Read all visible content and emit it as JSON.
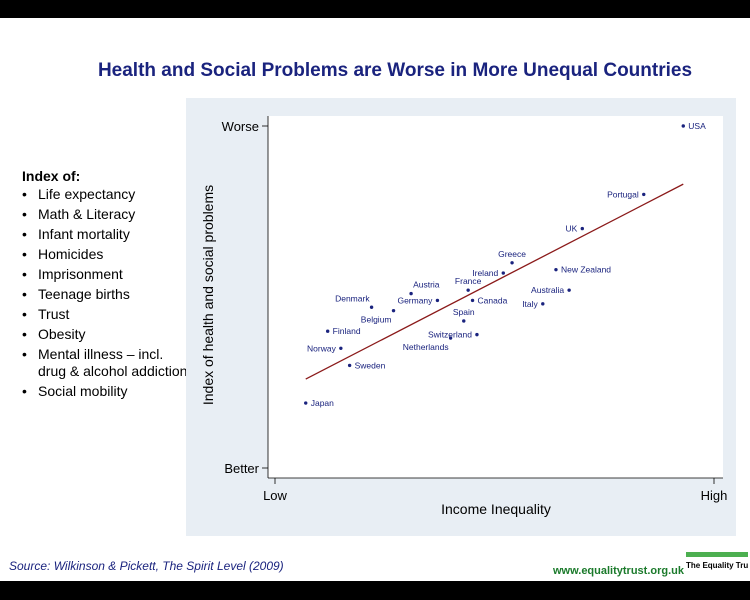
{
  "title": "Health and Social Problems are Worse in More Unequal Countries",
  "index": {
    "heading": "Index of:",
    "items": [
      "Life expectancy",
      "Math & Literacy",
      "Infant mortality",
      "Homicides",
      "Imprisonment",
      "Teenage births",
      "Trust",
      "Obesity",
      "Mental illness – incl. drug & alcohol addiction",
      "Social mobility"
    ]
  },
  "source": "Source: Wilkinson & Pickett, The Spirit Level (2009)",
  "website": "www.equalitytrust.org.uk",
  "logo_text": "The Equality Trust",
  "colors": {
    "title": "#1a237e",
    "fit_line": "#8b1a1a",
    "points": "#1a237e",
    "panel": "#e8eef4",
    "website": "#1b7a2b",
    "logo_bar": "#4caf50"
  },
  "chart_data": {
    "type": "scatter",
    "xlabel": "Income Inequality",
    "ylabel": "Index of health and social problems",
    "x_ticks": [
      {
        "value": 0,
        "label": "Low"
      },
      {
        "value": 1,
        "label": "High"
      }
    ],
    "y_ticks": [
      {
        "value": 0,
        "label": "Better"
      },
      {
        "value": 1,
        "label": "Worse"
      }
    ],
    "xlim": [
      0,
      1
    ],
    "ylim": [
      0,
      1
    ],
    "grid": false,
    "points": [
      {
        "label": "USA",
        "x": 0.93,
        "y": 1.0,
        "label_pos": "right"
      },
      {
        "label": "Portugal",
        "x": 0.84,
        "y": 0.8,
        "label_pos": "left"
      },
      {
        "label": "UK",
        "x": 0.7,
        "y": 0.7,
        "label_pos": "left"
      },
      {
        "label": "Greece",
        "x": 0.54,
        "y": 0.6,
        "label_pos": "above"
      },
      {
        "label": "New Zealand",
        "x": 0.64,
        "y": 0.58,
        "label_pos": "right"
      },
      {
        "label": "Ireland",
        "x": 0.52,
        "y": 0.57,
        "label_pos": "left"
      },
      {
        "label": "Australia",
        "x": 0.67,
        "y": 0.52,
        "label_pos": "left"
      },
      {
        "label": "France",
        "x": 0.44,
        "y": 0.52,
        "label_pos": "above"
      },
      {
        "label": "Italy",
        "x": 0.61,
        "y": 0.48,
        "label_pos": "left"
      },
      {
        "label": "Canada",
        "x": 0.45,
        "y": 0.49,
        "label_pos": "right"
      },
      {
        "label": "Austria",
        "x": 0.31,
        "y": 0.51,
        "label_pos": "above-right"
      },
      {
        "label": "Germany",
        "x": 0.37,
        "y": 0.49,
        "label_pos": "left"
      },
      {
        "label": "Denmark",
        "x": 0.22,
        "y": 0.47,
        "label_pos": "above-left"
      },
      {
        "label": "Belgium",
        "x": 0.27,
        "y": 0.46,
        "label_pos": "below-left"
      },
      {
        "label": "Spain",
        "x": 0.43,
        "y": 0.43,
        "label_pos": "above"
      },
      {
        "label": "Switzerland",
        "x": 0.46,
        "y": 0.39,
        "label_pos": "left"
      },
      {
        "label": "Netherlands",
        "x": 0.4,
        "y": 0.38,
        "label_pos": "below-left"
      },
      {
        "label": "Finland",
        "x": 0.12,
        "y": 0.4,
        "label_pos": "right"
      },
      {
        "label": "Norway",
        "x": 0.15,
        "y": 0.35,
        "label_pos": "left"
      },
      {
        "label": "Sweden",
        "x": 0.17,
        "y": 0.3,
        "label_pos": "right"
      },
      {
        "label": "Japan",
        "x": 0.07,
        "y": 0.19,
        "label_pos": "right"
      }
    ],
    "fit_line": {
      "x": [
        0.07,
        0.93
      ],
      "y": [
        0.26,
        0.83
      ]
    }
  }
}
